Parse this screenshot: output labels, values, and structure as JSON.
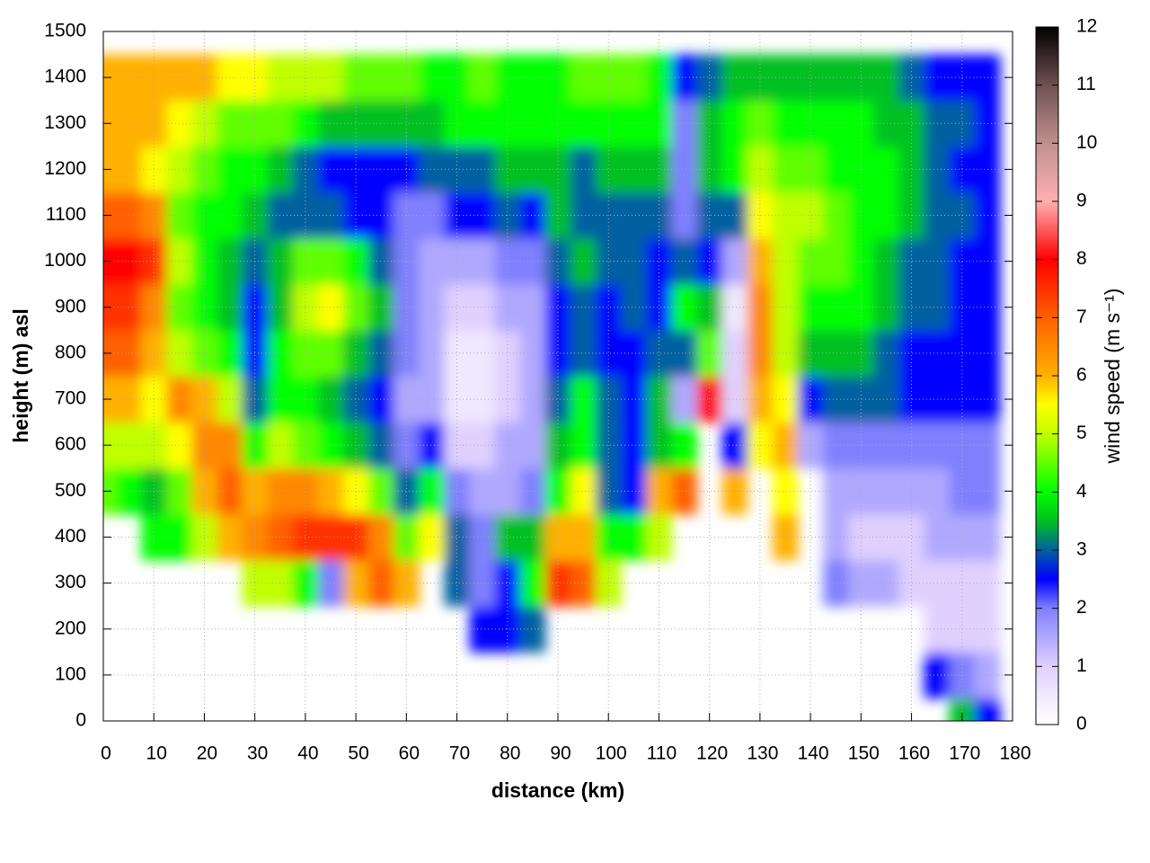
{
  "chart_data": {
    "type": "heatmap",
    "xlabel": "distance (km)",
    "ylabel": "height (m) asl",
    "colorbar_label": "wind speed (m s⁻¹)",
    "xlim": [
      0,
      180
    ],
    "xticks": [
      0,
      10,
      20,
      30,
      40,
      50,
      60,
      70,
      80,
      90,
      100,
      110,
      120,
      130,
      140,
      150,
      160,
      170,
      180
    ],
    "ylim": [
      0,
      1500
    ],
    "yticks": [
      0,
      100,
      200,
      300,
      400,
      500,
      600,
      700,
      800,
      900,
      1000,
      1100,
      1200,
      1300,
      1400,
      1500
    ],
    "zlim": [
      0,
      12
    ],
    "zticks": [
      0,
      1,
      2,
      3,
      4,
      5,
      6,
      7,
      8,
      9,
      10,
      11,
      12
    ],
    "grid": true,
    "colorscale": [
      [
        0,
        "#ffffff"
      ],
      [
        1,
        "#e0d0ff"
      ],
      [
        2,
        "#8080ff"
      ],
      [
        2.5,
        "#0000ff"
      ],
      [
        3,
        "#0060a0"
      ],
      [
        3.5,
        "#00c020"
      ],
      [
        4,
        "#00ff00"
      ],
      [
        5,
        "#c0ff00"
      ],
      [
        5.5,
        "#ffff00"
      ],
      [
        6,
        "#ffb000"
      ],
      [
        7,
        "#ff6000"
      ],
      [
        8,
        "#ff0000"
      ],
      [
        9,
        "#ffb0b0"
      ],
      [
        10,
        "#c09090"
      ],
      [
        11,
        "#705050"
      ],
      [
        12,
        "#000000"
      ]
    ],
    "x": [
      0,
      5,
      10,
      15,
      20,
      25,
      30,
      35,
      40,
      45,
      50,
      55,
      60,
      65,
      70,
      75,
      80,
      85,
      90,
      95,
      100,
      105,
      110,
      115,
      120,
      125,
      130,
      135,
      140,
      145,
      150,
      155,
      160,
      165,
      170,
      175
    ],
    "y": [
      0,
      100,
      200,
      300,
      400,
      500,
      600,
      700,
      800,
      900,
      1000,
      1100,
      1200,
      1300,
      1400
    ],
    "values": [
      [
        null,
        null,
        null,
        null,
        null,
        4.5,
        5,
        6,
        7,
        7.5,
        8,
        7,
        6,
        6,
        6
      ],
      [
        null,
        null,
        null,
        null,
        null,
        4,
        5,
        6,
        7,
        7.5,
        8,
        7,
        6,
        6,
        6
      ],
      [
        null,
        null,
        null,
        null,
        4,
        3.5,
        5,
        5.5,
        6,
        6.5,
        7.5,
        6.5,
        5.5,
        6,
        6
      ],
      [
        null,
        null,
        null,
        null,
        4,
        4.5,
        5.5,
        6.5,
        5,
        4.5,
        5,
        4.5,
        5,
        5.5,
        6
      ],
      [
        null,
        null,
        null,
        null,
        5,
        6,
        6.5,
        6,
        4.5,
        4,
        4,
        4,
        4.5,
        5,
        6
      ],
      [
        null,
        null,
        null,
        null,
        6,
        7,
        6.5,
        5,
        4,
        3.5,
        3.5,
        4,
        4,
        4.5,
        5.5
      ],
      [
        null,
        null,
        null,
        5,
        6.5,
        6,
        4,
        3,
        2.5,
        2.5,
        3,
        3.5,
        4,
        4.5,
        5.5
      ],
      [
        null,
        null,
        null,
        5,
        7,
        6.5,
        5,
        4,
        4,
        3.5,
        3.5,
        3,
        3.5,
        4.5,
        5
      ],
      [
        null,
        null,
        null,
        4,
        7.5,
        6.5,
        4.5,
        4,
        4.5,
        5,
        4.5,
        3,
        3,
        4,
        5
      ],
      [
        null,
        null,
        null,
        2,
        7.5,
        6,
        4,
        3.5,
        4.5,
        5.5,
        4.5,
        3,
        2.5,
        3.5,
        5
      ],
      [
        null,
        null,
        null,
        6,
        7.5,
        5.5,
        3.5,
        3,
        3.5,
        4.5,
        4,
        2.5,
        2.5,
        3.5,
        4.5
      ],
      [
        null,
        null,
        null,
        7,
        6.5,
        4.5,
        3,
        2.5,
        3,
        3.5,
        3,
        2.5,
        2.5,
        3.5,
        4.5
      ],
      [
        null,
        null,
        null,
        6,
        4.5,
        3,
        2,
        1.5,
        2,
        2,
        2,
        2,
        2.5,
        3.5,
        4.5
      ],
      [
        null,
        null,
        null,
        null,
        5.5,
        4,
        2.5,
        1.5,
        1.5,
        1.5,
        1.5,
        2,
        3,
        3.5,
        4
      ],
      [
        null,
        null,
        null,
        3,
        3,
        2,
        1,
        0.5,
        0.5,
        1,
        1.5,
        2.5,
        3,
        4,
        4
      ],
      [
        null,
        null,
        2.5,
        2,
        2,
        1.5,
        1,
        0.5,
        0.5,
        1,
        1.5,
        2.5,
        3,
        4,
        4.5
      ],
      [
        null,
        null,
        2.5,
        2.5,
        3.5,
        1.5,
        1.5,
        1,
        1,
        1.5,
        2,
        3,
        3.5,
        4,
        4
      ],
      [
        null,
        null,
        3,
        4,
        3.5,
        2,
        1.5,
        1.5,
        1.5,
        1.5,
        2,
        2.5,
        3.5,
        4,
        4
      ],
      [
        null,
        null,
        null,
        7.5,
        6,
        4,
        3.5,
        3,
        2.5,
        2.5,
        3,
        3.5,
        3.5,
        4,
        4
      ],
      [
        null,
        null,
        null,
        7,
        6,
        5.5,
        4,
        4,
        3,
        3,
        3.5,
        3,
        3,
        4,
        4.5
      ],
      [
        null,
        null,
        null,
        5,
        4,
        3,
        3,
        3,
        2.5,
        2.5,
        3,
        3,
        3.5,
        4,
        4.5
      ],
      [
        null,
        null,
        null,
        null,
        4,
        2.5,
        2.5,
        2.5,
        2.5,
        3,
        3,
        3,
        3.5,
        4,
        4.5
      ],
      [
        null,
        null,
        null,
        null,
        5,
        6,
        3.5,
        3.5,
        3,
        2.5,
        2.5,
        3,
        3.5,
        4,
        4
      ],
      [
        null,
        null,
        null,
        null,
        null,
        7,
        4,
        1.5,
        3,
        4,
        3,
        2,
        2,
        2,
        2.5
      ],
      [
        null,
        null,
        null,
        null,
        null,
        null,
        null,
        8,
        4.5,
        3.5,
        2.5,
        3,
        3.5,
        3.5,
        3
      ],
      [
        null,
        null,
        null,
        null,
        null,
        6,
        2.5,
        1,
        1,
        0.5,
        1.5,
        3,
        4,
        4,
        3.5
      ],
      [
        null,
        null,
        null,
        null,
        null,
        null,
        5.5,
        6,
        6.5,
        6.5,
        6,
        5.5,
        5,
        4.5,
        3.5
      ],
      [
        null,
        null,
        null,
        null,
        6,
        5.5,
        6,
        5.5,
        5,
        5,
        5,
        5,
        4.5,
        4,
        3.5
      ],
      [
        null,
        null,
        null,
        null,
        null,
        null,
        1.5,
        2.5,
        3.5,
        4,
        4.5,
        5,
        4.5,
        4,
        3.5
      ],
      [
        null,
        null,
        null,
        2,
        1.5,
        1.5,
        2,
        3,
        3.5,
        4,
        4.5,
        4.5,
        4,
        4,
        3.5
      ],
      [
        null,
        null,
        null,
        1.5,
        1,
        1.5,
        2,
        3,
        3.5,
        4,
        4,
        4,
        4,
        4,
        3.5
      ],
      [
        null,
        null,
        null,
        1.5,
        1,
        1.5,
        2,
        3,
        3,
        3.5,
        3.5,
        4,
        4,
        3.5,
        3.5
      ],
      [
        null,
        null,
        null,
        1,
        1,
        1.5,
        2,
        2.5,
        2.5,
        3,
        3,
        3.5,
        3.5,
        3.5,
        3
      ],
      [
        null,
        2.5,
        1,
        1,
        1.5,
        1.5,
        2,
        2.5,
        2.5,
        3,
        3,
        3,
        3,
        3,
        2.5
      ],
      [
        3.5,
        2,
        1,
        1,
        1.5,
        2,
        2,
        2.5,
        2.5,
        2.5,
        2.5,
        3,
        2.5,
        3,
        2.5
      ],
      [
        2.5,
        1.5,
        1,
        1,
        1.5,
        2,
        2,
        2.5,
        2.5,
        2.5,
        2.5,
        2.5,
        2.5,
        2.5,
        2.5
      ]
    ]
  }
}
